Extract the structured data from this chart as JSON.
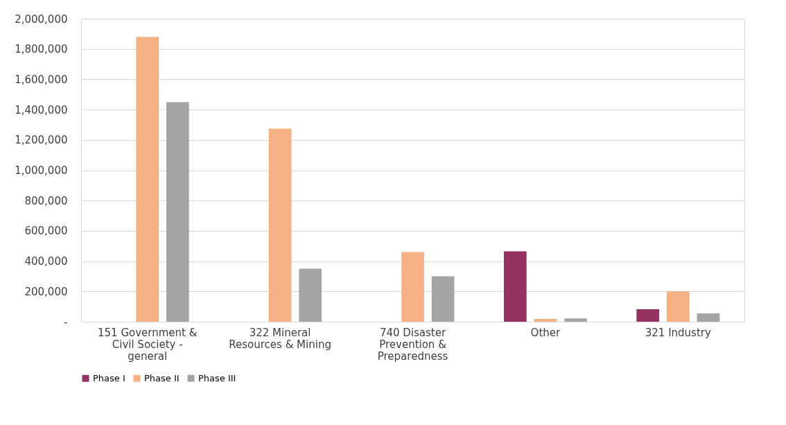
{
  "chart_data": {
    "type": "bar",
    "categories": [
      "151 Government & Civil Society - general",
      "322 Mineral Resources & Mining",
      "740 Disaster Prevention & Preparedness",
      "Other",
      "321 Industry"
    ],
    "series": [
      {
        "name": "Phase I",
        "color": "#953163",
        "values": [
          null,
          null,
          null,
          465000,
          82000
        ]
      },
      {
        "name": "Phase II",
        "color": "#f4b183",
        "values": [
          1880000,
          1275000,
          460000,
          18000,
          200000
        ]
      },
      {
        "name": "Phase III",
        "color": "#a5a5a5",
        "values": [
          1450000,
          350000,
          300000,
          22000,
          55000
        ]
      }
    ],
    "ylim": [
      0,
      2000000
    ],
    "yticks": [
      {
        "value": 0,
        "label": "-"
      },
      {
        "value": 200000,
        "label": "200,000"
      },
      {
        "value": 400000,
        "label": "400,000"
      },
      {
        "value": 600000,
        "label": "600,000"
      },
      {
        "value": 800000,
        "label": "800,000"
      },
      {
        "value": 1000000,
        "label": "1,000,000"
      },
      {
        "value": 1200000,
        "label": "1,200,000"
      },
      {
        "value": 1400000,
        "label": "1,400,000"
      },
      {
        "value": 1600000,
        "label": "1,600,000"
      },
      {
        "value": 1800000,
        "label": "1,800,000"
      },
      {
        "value": 2000000,
        "label": "2,000,000"
      }
    ],
    "grid": "y",
    "legend": "bottom"
  }
}
